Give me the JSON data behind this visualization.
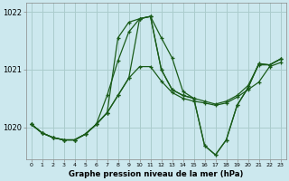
{
  "title": "Graphe pression niveau de la mer (hPa)",
  "background_color": "#cce8ee",
  "grid_color": "#aacccc",
  "line_color": "#1a5c1a",
  "xlim": [
    -0.5,
    23.5
  ],
  "ylim": [
    1019.45,
    1022.15
  ],
  "xticks": [
    0,
    1,
    2,
    3,
    4,
    5,
    6,
    7,
    8,
    9,
    10,
    11,
    12,
    13,
    14,
    15,
    16,
    17,
    18,
    19,
    20,
    21,
    22,
    23
  ],
  "yticks": [
    1020,
    1021,
    1022
  ],
  "series": [
    [
      1020.05,
      1019.9,
      1019.82,
      1019.78,
      1019.78,
      1019.88,
      1020.05,
      1020.25,
      1020.55,
      1020.85,
      1021.05,
      1021.05,
      1020.8,
      1020.6,
      1020.5,
      1020.45,
      1020.42,
      1020.38,
      1020.42,
      1020.52,
      1020.65,
      1020.78,
      1021.05,
      1021.12
    ],
    [
      1020.05,
      1019.9,
      1019.82,
      1019.78,
      1019.78,
      1019.88,
      1020.05,
      1020.55,
      1021.15,
      1021.65,
      1021.88,
      1021.92,
      1021.55,
      1021.2,
      1020.62,
      1020.5,
      1020.45,
      1020.4,
      1020.45,
      1020.55,
      1020.72,
      1021.08,
      1021.08,
      1021.18
    ],
    [
      1020.05,
      1019.9,
      1019.82,
      1019.78,
      1019.78,
      1019.88,
      1020.05,
      1020.25,
      1021.55,
      1021.82,
      1021.88,
      1021.92,
      1021.0,
      1020.65,
      1020.55,
      1020.5,
      1019.68,
      1019.52,
      1019.78,
      1020.38,
      1020.68,
      1021.1,
      1021.08,
      1021.18
    ],
    [
      1020.05,
      1019.9,
      1019.82,
      1019.78,
      1019.78,
      1019.88,
      1020.05,
      1020.25,
      1020.55,
      1020.85,
      1021.88,
      1021.92,
      1021.0,
      1020.65,
      1020.55,
      1020.5,
      1019.68,
      1019.52,
      1019.78,
      1020.38,
      1020.68,
      1021.1,
      1021.08,
      1021.18
    ]
  ]
}
